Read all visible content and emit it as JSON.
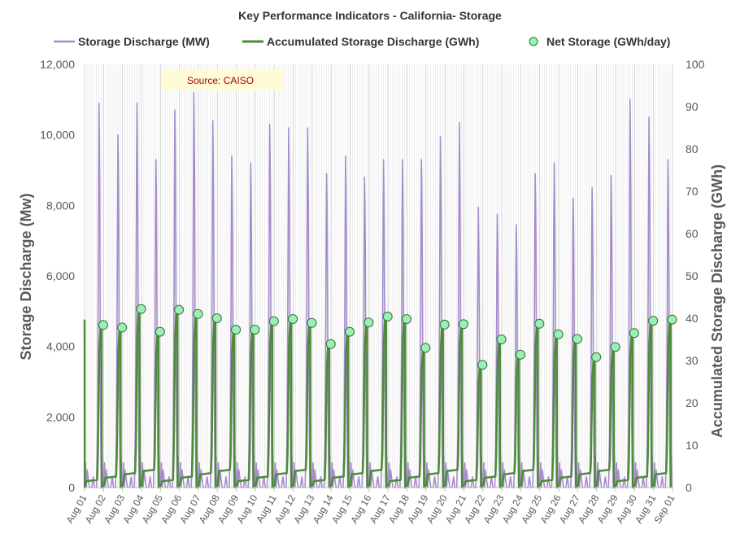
{
  "chart_data": {
    "type": "line",
    "title": "Key Performance Indicators - California- Storage",
    "source_note": "Source: CAISO",
    "ylabel_left": "Storage Discharge (Mw)",
    "ylabel_right": "Accumulated Storage Discharge (GWh)",
    "ylim_left": [
      0,
      12000
    ],
    "ylim_right": [
      0,
      100
    ],
    "yticks_left": [
      "0",
      "2,000",
      "4,000",
      "6,000",
      "8,000",
      "10,000",
      "12,000"
    ],
    "yticks_right": [
      "0",
      "10",
      "20",
      "30",
      "40",
      "50",
      "60",
      "70",
      "80",
      "90",
      "100"
    ],
    "categories": [
      "Aug 01",
      "Aug 02",
      "Aug 03",
      "Aug 04",
      "Aug 05",
      "Aug 06",
      "Aug 07",
      "Aug 08",
      "Aug 09",
      "Aug 10",
      "Aug 11",
      "Aug 12",
      "Aug 13",
      "Aug 14",
      "Aug 15",
      "Aug 16",
      "Aug 17",
      "Aug 18",
      "Aug 19",
      "Aug 20",
      "Aug 21",
      "Aug 22",
      "Aug 23",
      "Aug 24",
      "Aug 25",
      "Aug 26",
      "Aug 27",
      "Aug 28",
      "Aug 29",
      "Aug 30",
      "Aug 31",
      "Sep 01"
    ],
    "grid": "vertical",
    "legend_position": "top",
    "series": [
      {
        "name": "Storage Discharge (MW)",
        "kind": "line",
        "axis": "left",
        "color": "#a68ccb",
        "daily_peaks": [
          10900,
          10000,
          10900,
          9300,
          10700,
          11200,
          10400,
          9400,
          9200,
          10300,
          10200,
          10200,
          8900,
          9400,
          8800,
          9300,
          9300,
          9300,
          9950,
          10350,
          7950,
          7750,
          7450,
          8900,
          9200,
          8200,
          8500,
          8850,
          11000,
          10500,
          9300
        ]
      },
      {
        "name": "Accumulated Storage Discharge (GWh)",
        "kind": "line",
        "axis": "right",
        "color": "#4e8a3c",
        "daily_totals": [
          38.4,
          37.8,
          42.2,
          36.8,
          42.0,
          41.0,
          40.0,
          37.3,
          37.3,
          39.3,
          39.8,
          38.9,
          33.9,
          36.8,
          39.0,
          40.4,
          39.8,
          33.0,
          38.5,
          38.6,
          29.0,
          35.0,
          31.4,
          38.7,
          36.2,
          35.1,
          30.8,
          33.2,
          36.5,
          39.4,
          39.7
        ]
      },
      {
        "name": "Net Storage (GWh/day)",
        "kind": "scatter",
        "axis": "right",
        "color": "#98f0b4",
        "points": [
          38.4,
          37.8,
          42.2,
          36.8,
          42.0,
          41.0,
          40.0,
          37.3,
          37.3,
          39.3,
          39.8,
          38.9,
          33.9,
          36.8,
          39.0,
          40.4,
          39.8,
          33.0,
          38.5,
          38.6,
          29.0,
          35.0,
          31.4,
          38.7,
          36.2,
          35.1,
          30.8,
          33.2,
          36.5,
          39.4,
          39.7
        ]
      }
    ]
  }
}
